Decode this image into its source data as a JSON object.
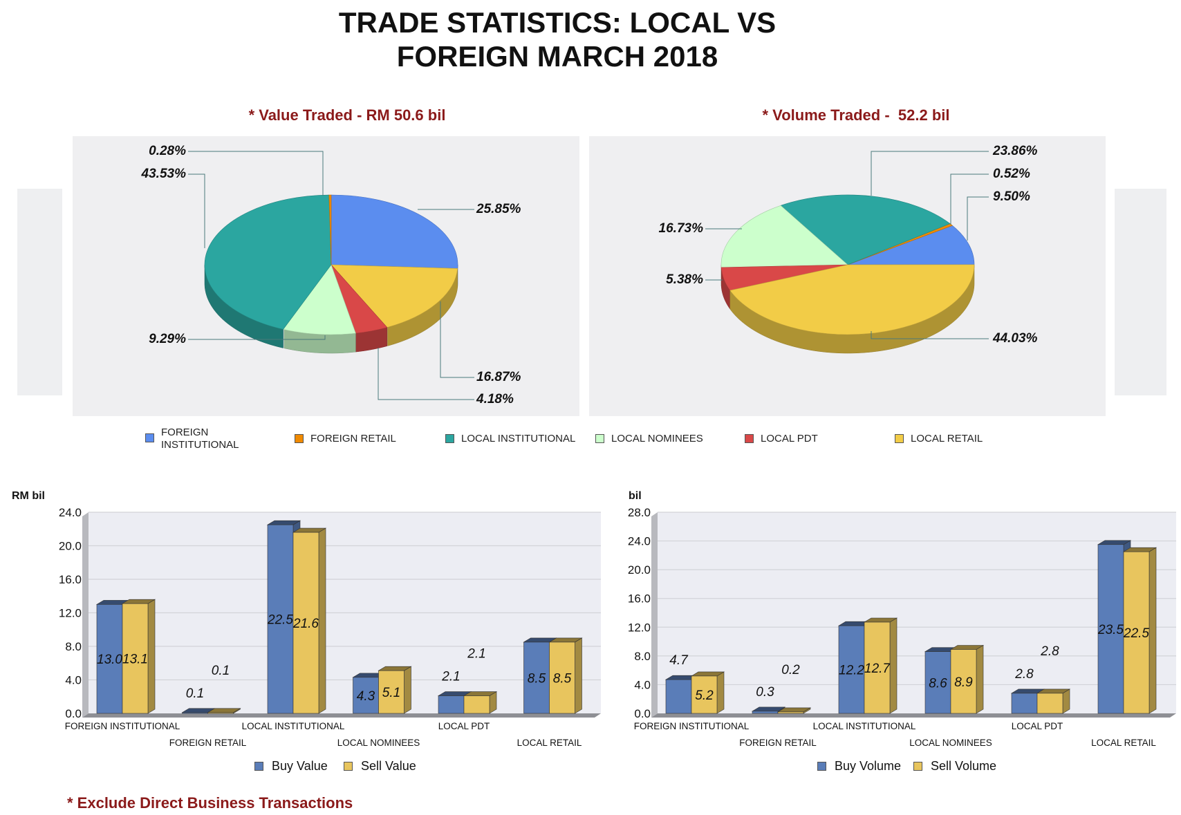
{
  "title_line1": "TRADE STATISTICS: LOCAL VS",
  "title_line2": "FOREIGN MARCH 2018",
  "footnote": "* Exclude Direct Business Transactions",
  "colors": {
    "foreign_institutional": "#5B8DEF",
    "foreign_retail": "#F08A00",
    "local_institutional": "#2BA6A0",
    "local_nominees": "#CCFFCC",
    "local_pdt": "#D94848",
    "local_retail": "#F2CC47",
    "buy": "#5A7DB8",
    "sell": "#E8C55E"
  },
  "pie_legend": [
    "FOREIGN INSTITUTIONAL",
    "FOREIGN RETAIL",
    "LOCAL INSTITUTIONAL",
    "LOCAL NOMINEES",
    "LOCAL PDT",
    "LOCAL RETAIL"
  ],
  "chart_data": [
    {
      "type": "pie",
      "title": "* Value Traded - RM 50.6 bil",
      "labels": [
        "FOREIGN INSTITUTIONAL",
        "LOCAL RETAIL",
        "LOCAL PDT",
        "LOCAL NOMINEES",
        "LOCAL INSTITUTIONAL",
        "FOREIGN RETAIL"
      ],
      "values": [
        25.85,
        16.87,
        4.18,
        9.29,
        43.53,
        0.28
      ],
      "value_labels": [
        "25.85%",
        "16.87%",
        "4.18%",
        "9.29%",
        "43.53%",
        "0.28%"
      ]
    },
    {
      "type": "pie",
      "title": "* Volume Traded -  52.2 bil",
      "labels": [
        "FOREIGN INSTITUTIONAL",
        "FOREIGN RETAIL",
        "LOCAL INSTITUTIONAL",
        "LOCAL NOMINEES",
        "LOCAL PDT",
        "LOCAL RETAIL"
      ],
      "values": [
        9.5,
        0.52,
        23.86,
        16.73,
        5.38,
        44.03
      ],
      "value_labels": [
        "9.50%",
        "0.52%",
        "23.86%",
        "16.73%",
        "5.38%",
        "44.03%"
      ]
    },
    {
      "type": "bar",
      "ylabel": "RM bil",
      "ylim": [
        0,
        24
      ],
      "yticks": [
        "0.0",
        "4.0",
        "8.0",
        "12.0",
        "16.0",
        "20.0",
        "24.0"
      ],
      "categories": [
        "FOREIGN INSTITUTIONAL",
        "FOREIGN RETAIL",
        "LOCAL INSTITUTIONAL",
        "LOCAL NOMINEES",
        "LOCAL PDT",
        "LOCAL RETAIL"
      ],
      "series": [
        {
          "name": "Buy Value",
          "values": [
            13.0,
            0.1,
            22.5,
            4.3,
            2.1,
            8.5
          ],
          "labels": [
            "13.0",
            "0.1",
            "22.5",
            "4.3",
            "2.1",
            "8.5"
          ]
        },
        {
          "name": "Sell Value",
          "values": [
            13.1,
            0.1,
            21.6,
            5.1,
            2.1,
            8.5
          ],
          "labels": [
            "13.1",
            "0.1",
            "21.6",
            "5.1",
            "2.1",
            "8.5"
          ]
        }
      ],
      "grid": true,
      "legend": "bottom"
    },
    {
      "type": "bar",
      "ylabel": "bil",
      "ylim": [
        0,
        28
      ],
      "yticks": [
        "0.0",
        "4.0",
        "8.0",
        "12.0",
        "16.0",
        "20.0",
        "24.0",
        "28.0"
      ],
      "categories": [
        "FOREIGN INSTITUTIONAL",
        "FOREIGN RETAIL",
        "LOCAL INSTITUTIONAL",
        "LOCAL NOMINEES",
        "LOCAL PDT",
        "LOCAL RETAIL"
      ],
      "series": [
        {
          "name": "Buy Volume",
          "values": [
            4.7,
            0.3,
            12.2,
            8.6,
            2.8,
            23.5
          ],
          "labels": [
            "4.7",
            "0.3",
            "12.2",
            "8.6",
            "2.8",
            "23.5"
          ]
        },
        {
          "name": "Sell Volume",
          "values": [
            5.2,
            0.2,
            12.7,
            8.9,
            2.8,
            22.5
          ],
          "labels": [
            "5.2",
            "0.2",
            "12.7",
            "8.9",
            "2.8",
            "22.5"
          ]
        }
      ],
      "grid": true,
      "legend": "bottom"
    }
  ]
}
